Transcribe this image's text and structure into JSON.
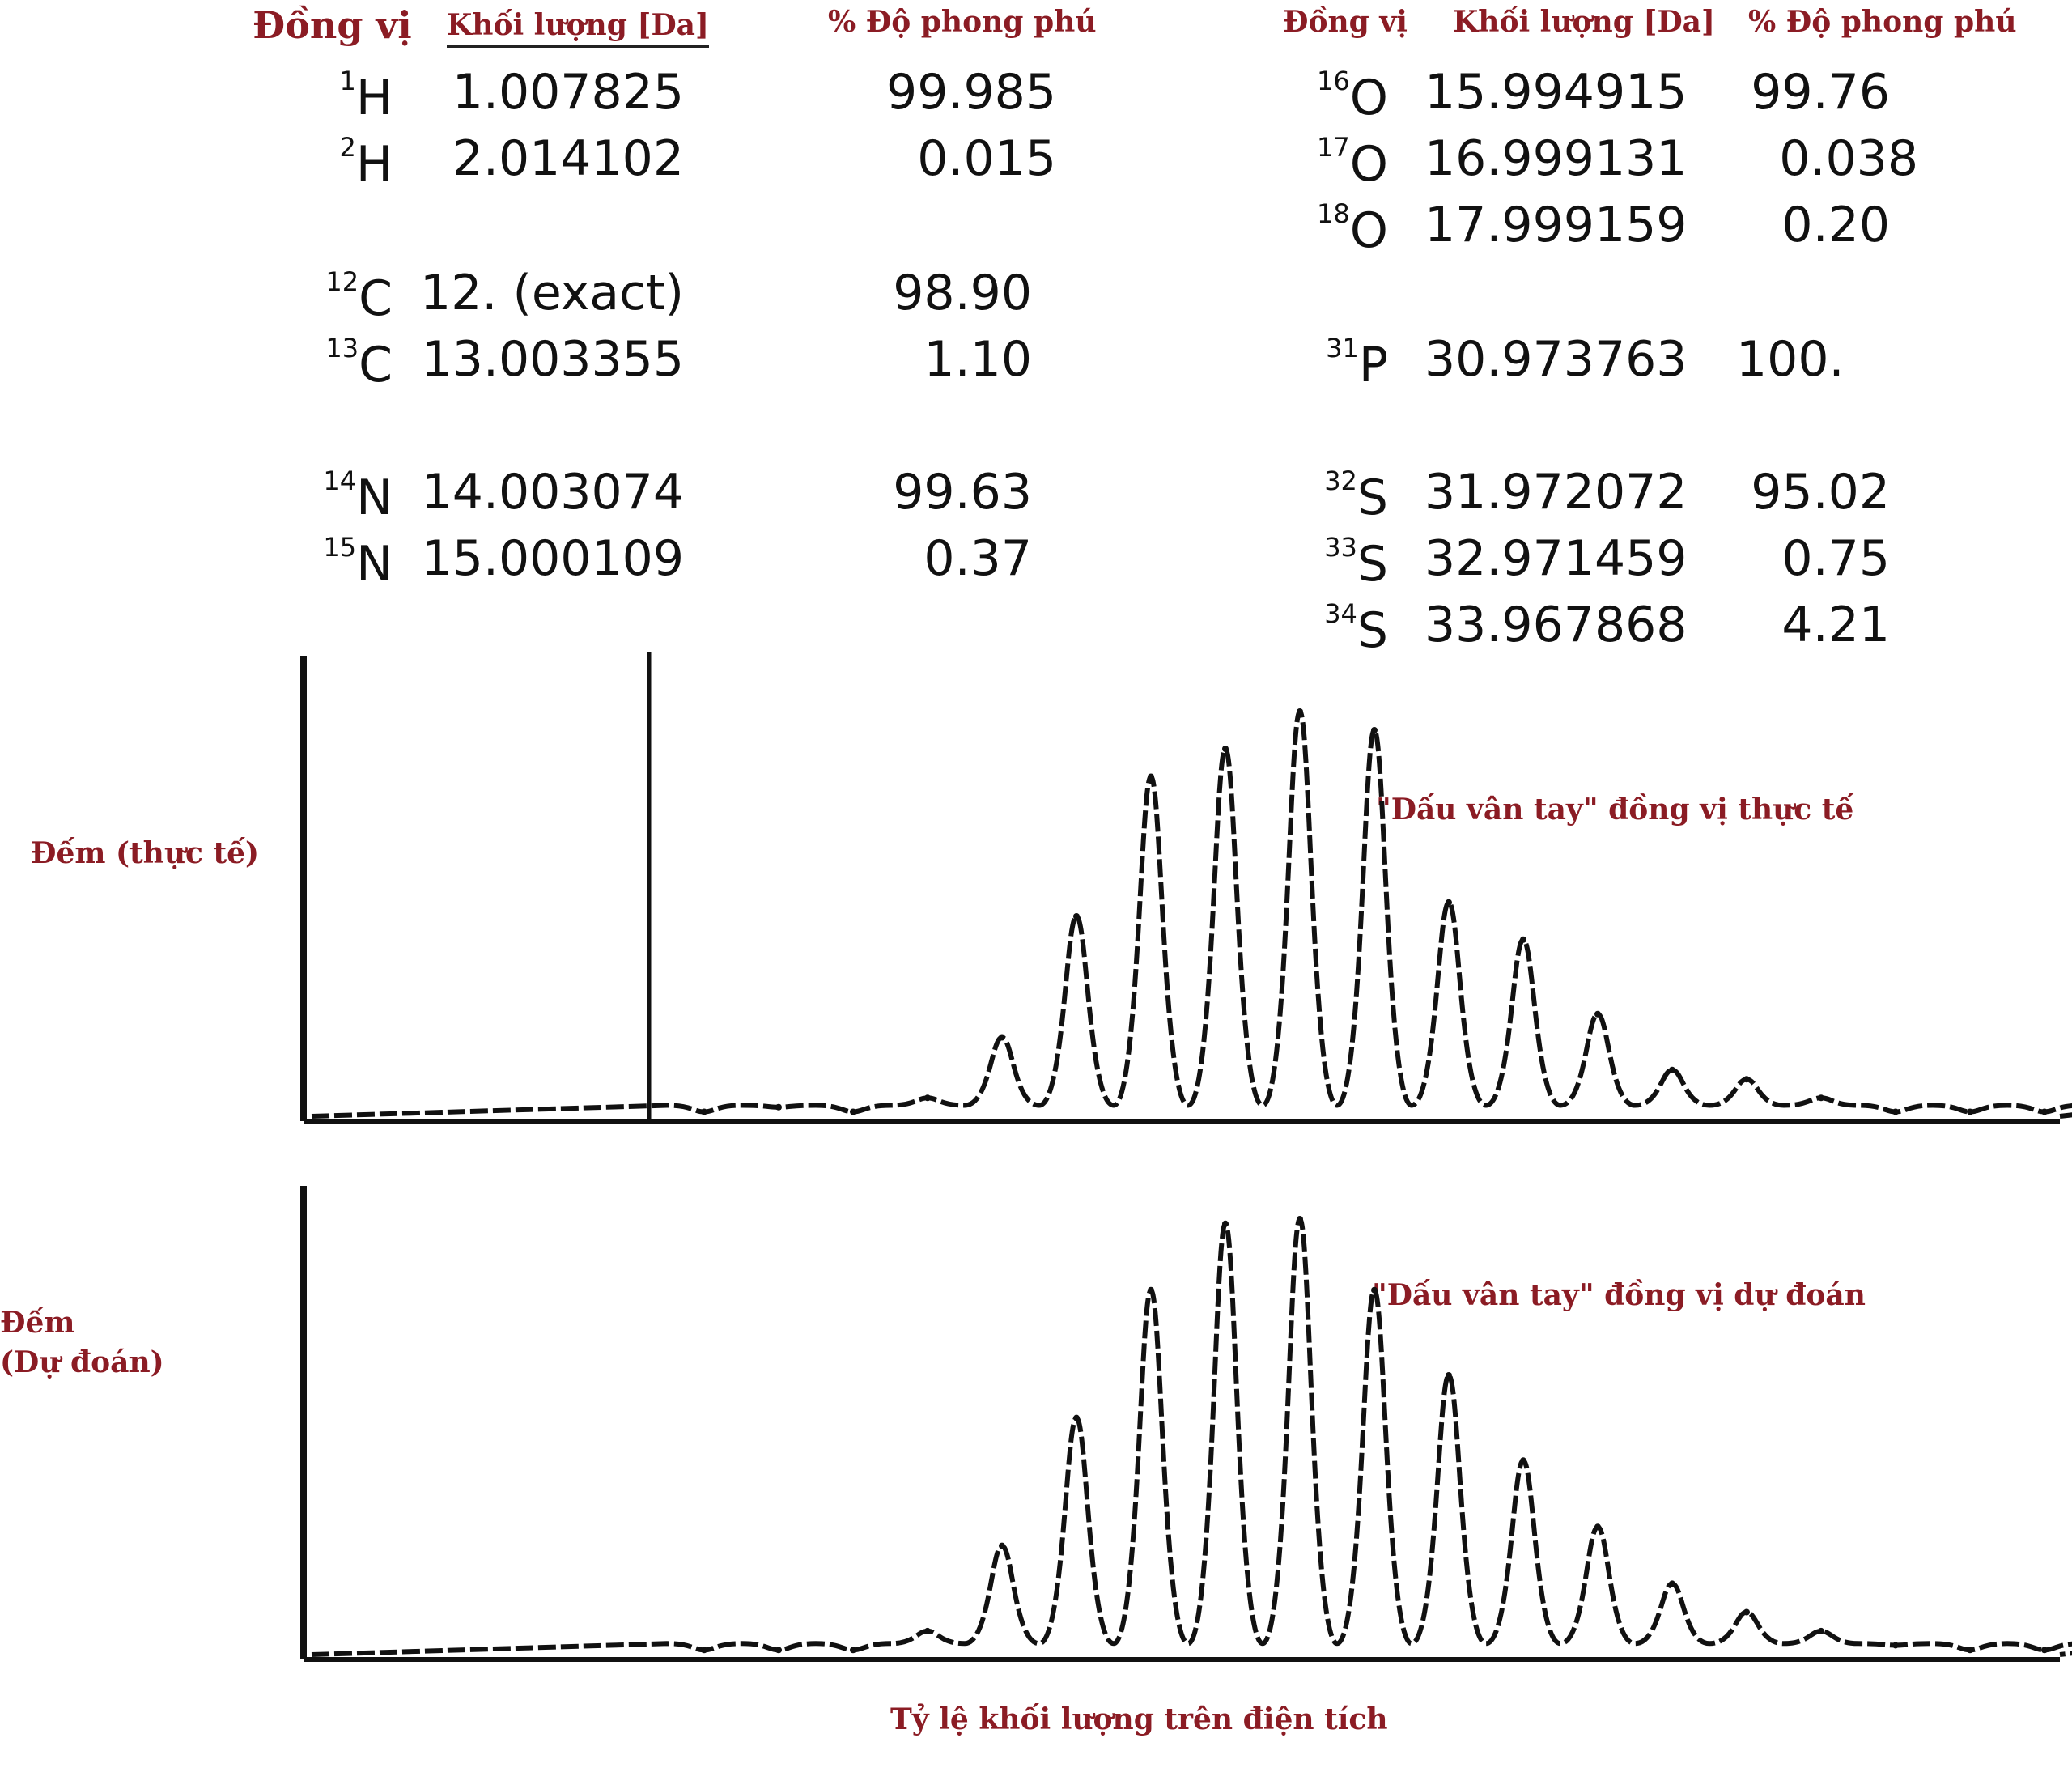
{
  "left_table": {
    "headers": {
      "isotope": "Đồng vị",
      "mass": "Khối lượng [Da]",
      "abundance": "% Độ phong phú"
    },
    "rows": [
      {
        "mass_number": "1",
        "element": "H",
        "mass": "1.007825",
        "abundance": "99.985"
      },
      {
        "mass_number": "2",
        "element": "H",
        "mass": "2.014102",
        "abundance": "0.015"
      },
      {
        "mass_number": "12",
        "element": "C",
        "mass": "12. (exact)",
        "abundance": "98.90"
      },
      {
        "mass_number": "13",
        "element": "C",
        "mass": "13.003355",
        "abundance": "1.10"
      },
      {
        "mass_number": "14",
        "element": "N",
        "mass": "14.003074",
        "abundance": "99.63"
      },
      {
        "mass_number": "15",
        "element": "N",
        "mass": "15.000109",
        "abundance": "0.37"
      }
    ]
  },
  "right_table": {
    "headers": {
      "isotope": "Đồng vị",
      "mass": "Khối lượng [Da]",
      "abundance": "% Độ phong phú"
    },
    "rows": [
      {
        "mass_number": "16",
        "element": "O",
        "mass": "15.994915",
        "abundance": "99.76"
      },
      {
        "mass_number": "17",
        "element": "O",
        "mass": "16.999131",
        "abundance": "0.038"
      },
      {
        "mass_number": "18",
        "element": "O",
        "mass": "17.999159",
        "abundance": "0.20"
      },
      {
        "mass_number": "31",
        "element": "P",
        "mass": "30.973763",
        "abundance": "100."
      },
      {
        "mass_number": "32",
        "element": "S",
        "mass": "31.972072",
        "abundance": "95.02"
      },
      {
        "mass_number": "33",
        "element": "S",
        "mass": "32.971459",
        "abundance": "0.75"
      },
      {
        "mass_number": "34",
        "element": "S",
        "mass": "33.967868",
        "abundance": "4.21"
      }
    ]
  },
  "chart_data": [
    {
      "type": "line",
      "ylabel": "Đếm (thực tế)",
      "annotation": "\"Dấu vân tay\" đồng vị thực tế",
      "marker_line": true,
      "series": [
        {
          "values": [
            0.02,
            0.03,
            0.02,
            0.05,
            0.18,
            0.44,
            0.74,
            0.8,
            0.88,
            0.84,
            0.47,
            0.39,
            0.23,
            0.11,
            0.09,
            0.05,
            0.02,
            0.02,
            0.02,
            0.02
          ]
        }
      ]
    },
    {
      "type": "line",
      "ylabel": "Đếm\n(Dự đoán)",
      "annotation": "\"Dấu vân tay\" đồng vị dự đoán",
      "xlabel": "Tỷ lệ khối lượng trên điện tích",
      "marker_line": false,
      "series": [
        {
          "values": [
            0.02,
            0.02,
            0.02,
            0.06,
            0.24,
            0.51,
            0.78,
            0.92,
            0.93,
            0.78,
            0.6,
            0.42,
            0.28,
            0.16,
            0.1,
            0.06,
            0.03,
            0.02,
            0.02,
            0.02
          ]
        }
      ]
    }
  ]
}
